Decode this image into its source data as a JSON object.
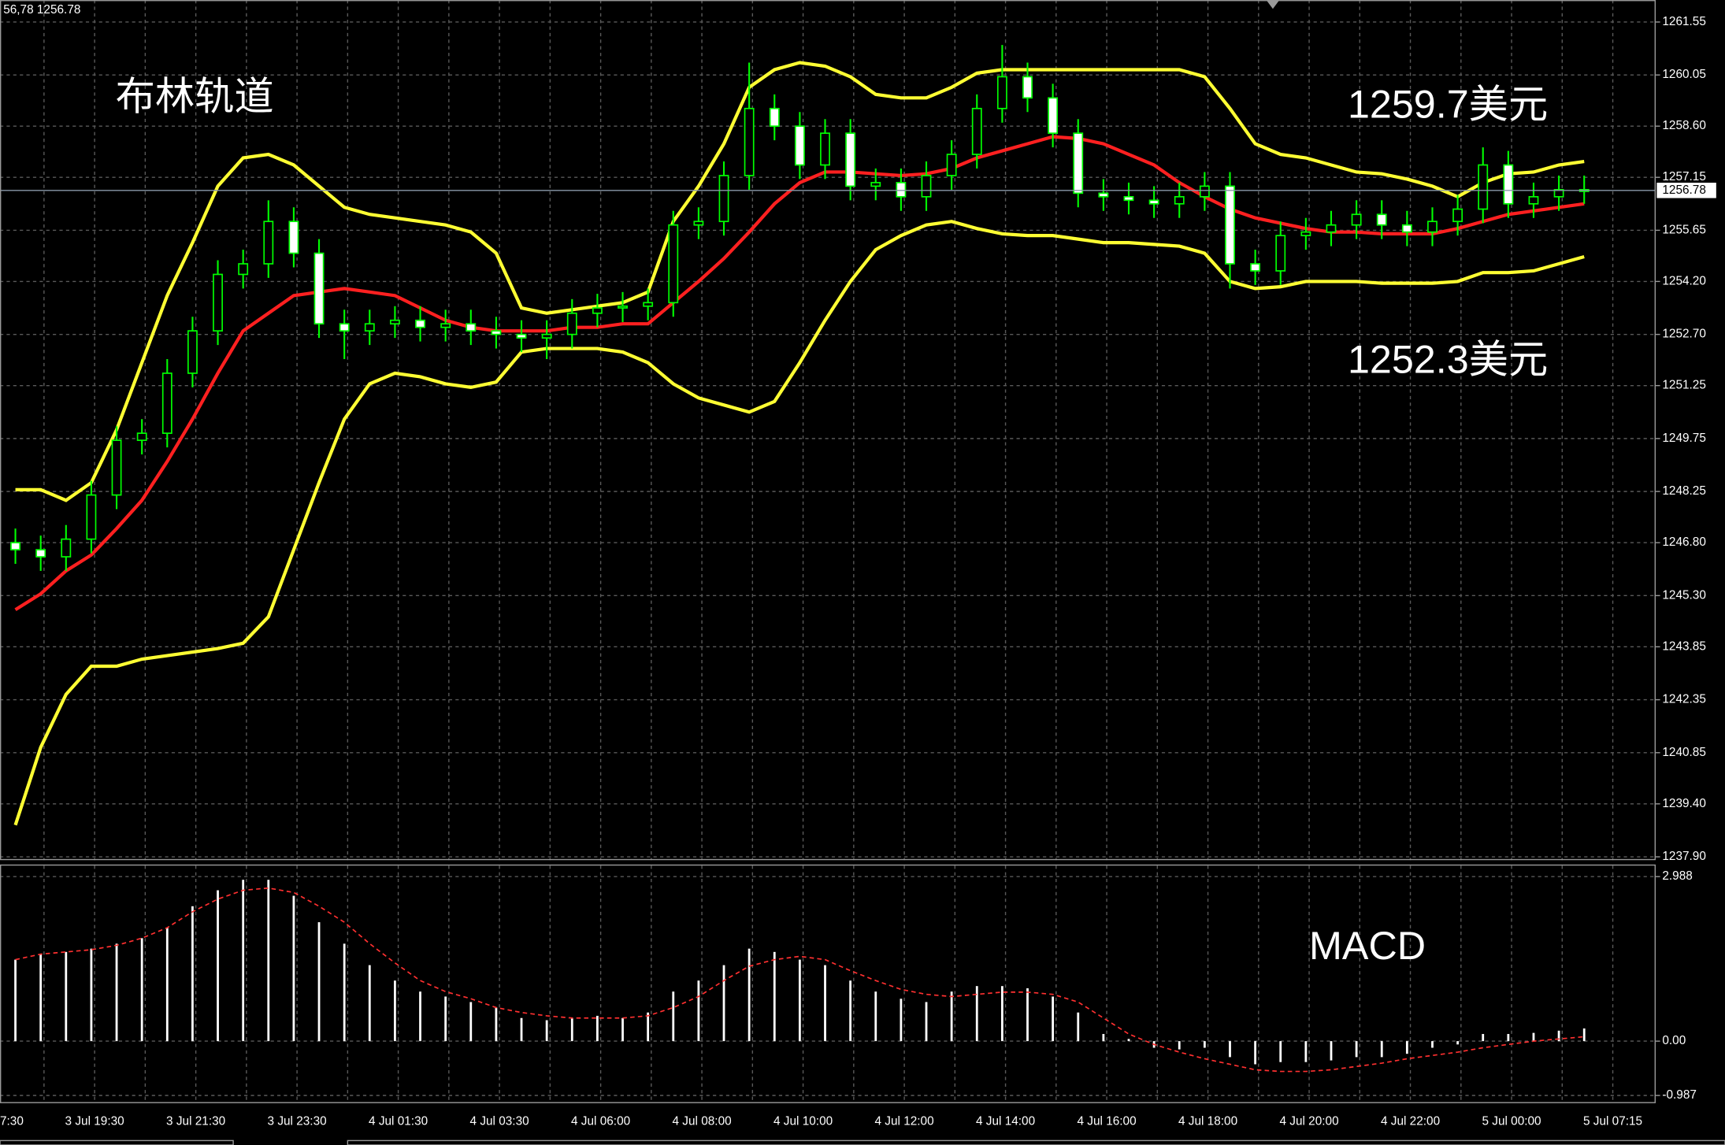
{
  "header_text": "56,78 1256.78",
  "chart_data": [
    {
      "type": "candlestick",
      "annotations": [
        "布林轨道",
        "1259.7美元",
        "1252.3美元"
      ],
      "categories": [
        "7:30",
        null,
        null,
        null,
        "3 Jul 19:30",
        null,
        null,
        null,
        "3 Jul 21:30",
        null,
        null,
        null,
        "3 Jul 23:30",
        null,
        null,
        null,
        "4 Jul 01:30",
        null,
        null,
        null,
        "4 Jul 03:30",
        null,
        null,
        null,
        "4 Jul 06:00",
        null,
        null,
        null,
        "4 Jul 08:00",
        null,
        null,
        null,
        "4 Jul 10:00",
        null,
        null,
        null,
        "4 Jul 12:00",
        null,
        null,
        null,
        "4 Jul 14:00",
        null,
        null,
        null,
        "4 Jul 16:00",
        null,
        null,
        null,
        "4 Jul 18:00",
        null,
        null,
        null,
        "4 Jul 20:00",
        null,
        null,
        null,
        "4 Jul 22:00",
        null,
        null,
        null,
        "5 Jul 00:00",
        null,
        null,
        null,
        "5 Jul 07:15"
      ],
      "open": [
        1246.8,
        1246.6,
        1246.4,
        1246.9,
        1248.15,
        1249.7,
        1249.9,
        1251.6,
        1252.8,
        1254.4,
        1254.7,
        1255.9,
        1255.0,
        1253.0,
        1252.8,
        1253.0,
        1253.1,
        1252.9,
        1253.0,
        1252.8,
        1252.7,
        1252.6,
        1252.7,
        1253.3,
        1253.45,
        1253.5,
        1253.6,
        1255.8,
        1255.9,
        1257.2,
        1259.1,
        1258.6,
        1257.5,
        1258.4,
        1256.9,
        1257.0,
        1256.6,
        1257.2,
        1257.8,
        1259.1,
        1260.0,
        1259.4,
        1258.4,
        1256.7,
        1256.6,
        1256.5,
        1256.4,
        1256.6,
        1256.9,
        1254.7,
        1254.5,
        1255.5,
        1255.6,
        1255.8,
        1256.1,
        1255.8,
        1255.6,
        1255.9,
        1256.25,
        1257.5,
        1256.4,
        1256.6,
        1256.8,
        null,
        null
      ],
      "high": [
        1247.2,
        1247.0,
        1247.3,
        1248.55,
        1250.1,
        1250.3,
        1252.0,
        1253.2,
        1254.8,
        1255.1,
        1256.5,
        1256.3,
        1255.4,
        1253.4,
        1253.4,
        1253.5,
        1253.5,
        1253.4,
        1253.4,
        1253.2,
        1253.1,
        1253.1,
        1253.7,
        1253.85,
        1253.9,
        1254.0,
        1256.2,
        1256.3,
        1257.6,
        1260.4,
        1259.5,
        1259.0,
        1258.8,
        1258.8,
        1257.4,
        1257.4,
        1257.6,
        1258.2,
        1259.5,
        1260.9,
        1260.4,
        1259.8,
        1258.8,
        1257.1,
        1257.0,
        1256.9,
        1257.0,
        1257.3,
        1257.3,
        1255.1,
        1255.9,
        1256.0,
        1256.2,
        1256.5,
        1256.5,
        1256.2,
        1256.3,
        1256.65,
        1258.0,
        1257.9,
        1257.0,
        1257.2,
        1257.2,
        null,
        null
      ],
      "low": [
        1246.2,
        1246.0,
        1246.0,
        1246.5,
        1247.75,
        1249.3,
        1249.5,
        1251.2,
        1252.4,
        1254.0,
        1254.3,
        1254.6,
        1252.6,
        1252.0,
        1252.4,
        1252.6,
        1252.5,
        1252.5,
        1252.4,
        1252.3,
        1252.2,
        1252.0,
        1252.3,
        1252.9,
        1253.05,
        1253.1,
        1253.2,
        1255.4,
        1255.5,
        1256.8,
        1258.2,
        1257.1,
        1257.1,
        1256.5,
        1256.5,
        1256.2,
        1256.2,
        1256.8,
        1257.4,
        1258.7,
        1259.0,
        1258.0,
        1256.3,
        1256.2,
        1256.1,
        1256.0,
        1256.0,
        1256.2,
        1254.0,
        1254.1,
        1254.1,
        1255.1,
        1255.2,
        1255.4,
        1255.4,
        1255.2,
        1255.2,
        1255.5,
        1255.85,
        1256.0,
        1256.0,
        1256.2,
        1256.4,
        null,
        null
      ],
      "close": [
        1246.6,
        1246.4,
        1246.9,
        1248.15,
        1249.7,
        1249.9,
        1251.6,
        1252.8,
        1254.4,
        1254.7,
        1255.9,
        1255.0,
        1253.0,
        1252.8,
        1253.0,
        1253.1,
        1252.9,
        1253.0,
        1252.8,
        1252.7,
        1252.6,
        1252.7,
        1253.3,
        1253.45,
        1253.5,
        1253.6,
        1255.8,
        1255.9,
        1257.2,
        1259.1,
        1258.6,
        1257.5,
        1258.4,
        1256.9,
        1257.0,
        1256.6,
        1257.2,
        1257.8,
        1259.1,
        1260.0,
        1259.4,
        1258.4,
        1256.7,
        1256.6,
        1256.5,
        1256.4,
        1256.6,
        1256.9,
        1254.7,
        1254.5,
        1255.5,
        1255.6,
        1255.8,
        1256.1,
        1255.8,
        1255.6,
        1255.9,
        1256.25,
        1257.5,
        1256.4,
        1256.6,
        1256.8,
        1256.78,
        null,
        null
      ],
      "candle_color": "#00ff00",
      "overlays": [
        {
          "color": "#ffff33",
          "values": [
            1248.3,
            1248.3,
            1248.0,
            1248.5,
            1250.0,
            1251.9,
            1253.8,
            1255.3,
            1256.9,
            1257.7,
            1257.8,
            1257.5,
            1256.9,
            1256.3,
            1256.1,
            1256.0,
            1255.9,
            1255.8,
            1255.6,
            1255.0,
            1253.45,
            1253.3,
            1253.4,
            1253.5,
            1253.6,
            1253.9,
            1255.9,
            1256.9,
            1258.1,
            1259.7,
            1260.2,
            1260.4,
            1260.3,
            1260.0,
            1259.5,
            1259.4,
            1259.4,
            1259.7,
            1260.1,
            1260.2,
            1260.2,
            1260.2,
            1260.2,
            1260.2,
            1260.2,
            1260.2,
            1260.2,
            1260.0,
            1259.1,
            1258.1,
            1257.8,
            1257.7,
            1257.5,
            1257.3,
            1257.25,
            1257.1,
            1256.9,
            1256.6,
            1257.0,
            1257.25,
            1257.3,
            1257.5,
            1257.6,
            null,
            null
          ]
        },
        {
          "color": "#ff2020",
          "values": [
            1244.9,
            1245.35,
            1246.0,
            1246.45,
            1247.2,
            1248.0,
            1249.1,
            1250.3,
            1251.6,
            1252.8,
            1253.3,
            1253.8,
            1253.9,
            1254.0,
            1253.9,
            1253.8,
            1253.45,
            1253.1,
            1252.9,
            1252.8,
            1252.8,
            1252.8,
            1252.9,
            1252.9,
            1253.0,
            1253.0,
            1253.6,
            1254.2,
            1254.85,
            1255.6,
            1256.4,
            1257.0,
            1257.3,
            1257.3,
            1257.25,
            1257.2,
            1257.25,
            1257.4,
            1257.7,
            1257.9,
            1258.1,
            1258.3,
            1258.25,
            1258.1,
            1257.8,
            1257.5,
            1257.0,
            1256.6,
            1256.25,
            1256.0,
            1255.85,
            1255.7,
            1255.6,
            1255.6,
            1255.55,
            1255.55,
            1255.55,
            1255.7,
            1255.9,
            1256.1,
            1256.2,
            1256.3,
            1256.4,
            null,
            null
          ]
        },
        {
          "color": "#ffff33",
          "values": [
            1238.8,
            1241.0,
            1242.5,
            1243.3,
            1243.3,
            1243.5,
            1243.6,
            1243.7,
            1243.8,
            1243.95,
            1244.7,
            1246.6,
            1248.5,
            1250.3,
            1251.3,
            1251.6,
            1251.5,
            1251.3,
            1251.2,
            1251.35,
            1252.2,
            1252.3,
            1252.3,
            1252.3,
            1252.2,
            1251.9,
            1251.3,
            1250.9,
            1250.7,
            1250.5,
            1250.8,
            1251.9,
            1253.1,
            1254.2,
            1255.1,
            1255.5,
            1255.8,
            1255.9,
            1255.7,
            1255.55,
            1255.5,
            1255.5,
            1255.4,
            1255.3,
            1255.3,
            1255.25,
            1255.2,
            1255.0,
            1254.2,
            1254.0,
            1254.05,
            1254.2,
            1254.2,
            1254.2,
            1254.15,
            1254.15,
            1254.15,
            1254.2,
            1254.45,
            1254.45,
            1254.5,
            1254.7,
            1254.9,
            null,
            null
          ]
        }
      ],
      "last_price": 1256.78,
      "ylim": [
        1237.9,
        1261.55
      ],
      "yticks": [
        {
          "value": 1237.9,
          "label": "1237.90"
        },
        {
          "value": 1239.4,
          "label": "1239.40"
        },
        1240.85,
        1242.35,
        1243.85,
        {
          "value": 1245.3,
          "label": "1245.30"
        },
        {
          "value": 1246.8,
          "label": "1246.80"
        },
        1248.25,
        1249.75,
        1251.25,
        {
          "value": 1252.7,
          "label": "1252.70"
        },
        {
          "value": 1254.2,
          "label": "1254.20"
        },
        1255.65,
        1257.15,
        {
          "value": 1258.6,
          "label": "1258.60"
        },
        1260.05,
        1261.55
      ],
      "grid": true
    },
    {
      "type": "bar",
      "annotations": [
        "MACD"
      ],
      "color": "#ffffff",
      "values": [
        1.48,
        1.58,
        1.62,
        1.68,
        1.77,
        1.87,
        2.06,
        2.45,
        2.74,
        2.93,
        2.93,
        2.64,
        2.16,
        1.77,
        1.38,
        1.1,
        0.9,
        0.81,
        0.71,
        0.61,
        0.42,
        0.38,
        0.42,
        0.46,
        0.42,
        0.52,
        0.9,
        1.1,
        1.38,
        1.68,
        1.62,
        1.48,
        1.38,
        1.1,
        0.9,
        0.77,
        0.71,
        0.9,
        1.0,
        1.0,
        0.96,
        0.81,
        0.52,
        0.13,
        0.04,
        -0.12,
        -0.15,
        -0.12,
        -0.29,
        -0.42,
        -0.38,
        -0.38,
        -0.35,
        -0.29,
        -0.29,
        -0.23,
        -0.12,
        -0.06,
        0.13,
        0.13,
        0.15,
        0.19,
        0.23,
        null,
        null
      ],
      "signal": {
        "color": "#ff3030",
        "values": [
          1.48,
          1.58,
          1.62,
          1.66,
          1.74,
          1.87,
          2.06,
          2.35,
          2.58,
          2.74,
          2.78,
          2.7,
          2.45,
          2.16,
          1.77,
          1.42,
          1.1,
          0.9,
          0.77,
          0.61,
          0.52,
          0.46,
          0.42,
          0.42,
          0.42,
          0.46,
          0.61,
          0.81,
          1.1,
          1.36,
          1.48,
          1.54,
          1.48,
          1.28,
          1.1,
          0.94,
          0.85,
          0.81,
          0.85,
          0.89,
          0.89,
          0.85,
          0.71,
          0.42,
          0.13,
          -0.06,
          -0.2,
          -0.32,
          -0.42,
          -0.52,
          -0.55,
          -0.55,
          -0.52,
          -0.46,
          -0.4,
          -0.32,
          -0.26,
          -0.2,
          -0.12,
          -0.06,
          0,
          0.04,
          0.08,
          null,
          null
        ]
      },
      "ylim": [
        -0.987,
        2.988
      ],
      "yticks": [
        -0.987,
        {
          "value": 0,
          "label": "0.00"
        },
        2.988
      ]
    }
  ]
}
